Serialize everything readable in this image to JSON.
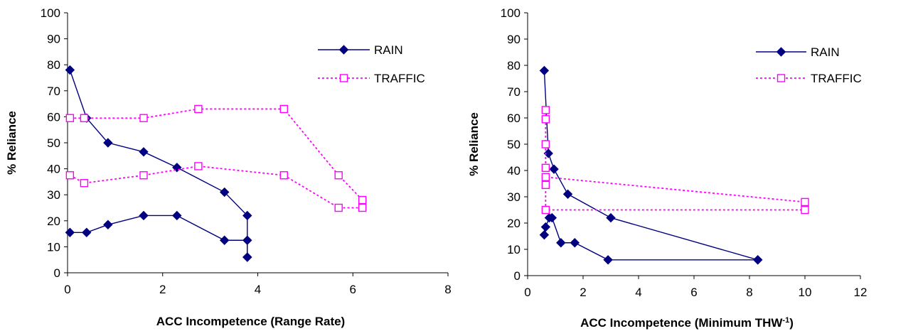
{
  "chart_data": [
    {
      "type": "line",
      "xlabel": "ACC Incompetence (Range Rate)",
      "xlabel_sup": "",
      "xlabel_tail": "",
      "ylabel": "% Reliance",
      "xlim": [
        0,
        8
      ],
      "ylim": [
        0,
        100
      ],
      "x_ticks": [
        "0",
        "2",
        "4",
        "6",
        "8"
      ],
      "y_ticks": [
        "0",
        "10",
        "20",
        "30",
        "40",
        "50",
        "60",
        "70",
        "80",
        "90",
        "100"
      ],
      "grid": false,
      "legend_position": "top-right",
      "series": [
        {
          "name": "RAIN",
          "color": "#000080",
          "line_style": "solid",
          "marker": "filled-diamond",
          "paths": [
            {
              "x": [
                0.05,
                0.4,
                0.85,
                1.6,
                2.3,
                3.3,
                3.78,
                3.78
              ],
              "y": [
                78,
                59.5,
                50,
                46.5,
                40.5,
                31,
                22,
                6
              ]
            },
            {
              "x": [
                0.05,
                0.4,
                0.85,
                1.6,
                2.3,
                3.3,
                3.78,
                3.78
              ],
              "y": [
                15.5,
                15.5,
                18.5,
                22,
                22,
                12.5,
                12.5,
                6
              ]
            }
          ]
        },
        {
          "name": "TRAFFIC",
          "color": "#ff00ff",
          "line_style": "dotted",
          "marker": "open-square",
          "paths": [
            {
              "x": [
                0.05,
                0.35,
                1.6,
                2.75,
                4.55,
                5.7,
                6.2
              ],
              "y": [
                59.5,
                59.5,
                59.5,
                63,
                63,
                37.5,
                28
              ]
            },
            {
              "x": [
                0.05,
                0.35,
                1.6,
                2.75,
                4.55,
                5.7,
                6.2
              ],
              "y": [
                37.5,
                34.5,
                37.5,
                41,
                37.5,
                25,
                25
              ]
            }
          ]
        }
      ]
    },
    {
      "type": "line",
      "xlabel": "ACC Incompetence (Minimum THW",
      "xlabel_sup": "-1",
      "xlabel_tail": ")",
      "ylabel": "% Reliance",
      "xlim": [
        0,
        12
      ],
      "ylim": [
        0,
        100
      ],
      "x_ticks": [
        "0",
        "2",
        "4",
        "6",
        "8",
        "10",
        "12"
      ],
      "y_ticks": [
        "0",
        "10",
        "20",
        "30",
        "40",
        "50",
        "60",
        "70",
        "80",
        "90",
        "100"
      ],
      "grid": false,
      "legend_position": "top-right",
      "series": [
        {
          "name": "RAIN",
          "color": "#000080",
          "line_style": "solid",
          "marker": "filled-diamond",
          "paths": [
            {
              "x": [
                0.6,
                0.75,
                0.95,
                1.45,
                3.0,
                8.3
              ],
              "y": [
                78,
                46.5,
                40.5,
                31,
                22,
                6
              ]
            },
            {
              "x": [
                0.6,
                0.65,
                0.78,
                0.88,
                1.2,
                1.7,
                2.9,
                8.3
              ],
              "y": [
                15.5,
                18.5,
                22,
                22,
                12.5,
                12.5,
                6,
                6
              ]
            }
          ]
        },
        {
          "name": "TRAFFIC",
          "color": "#ff00ff",
          "line_style": "dotted",
          "marker": "open-square",
          "paths": [
            {
              "x": [
                0.65,
                0.65,
                0.65,
                10.0
              ],
              "y": [
                63,
                59.5,
                37.5,
                28
              ]
            },
            {
              "x": [
                0.65,
                0.65,
                0.65,
                0.65,
                10.0
              ],
              "y": [
                50,
                41,
                34.5,
                25,
                25
              ]
            }
          ]
        }
      ]
    }
  ]
}
